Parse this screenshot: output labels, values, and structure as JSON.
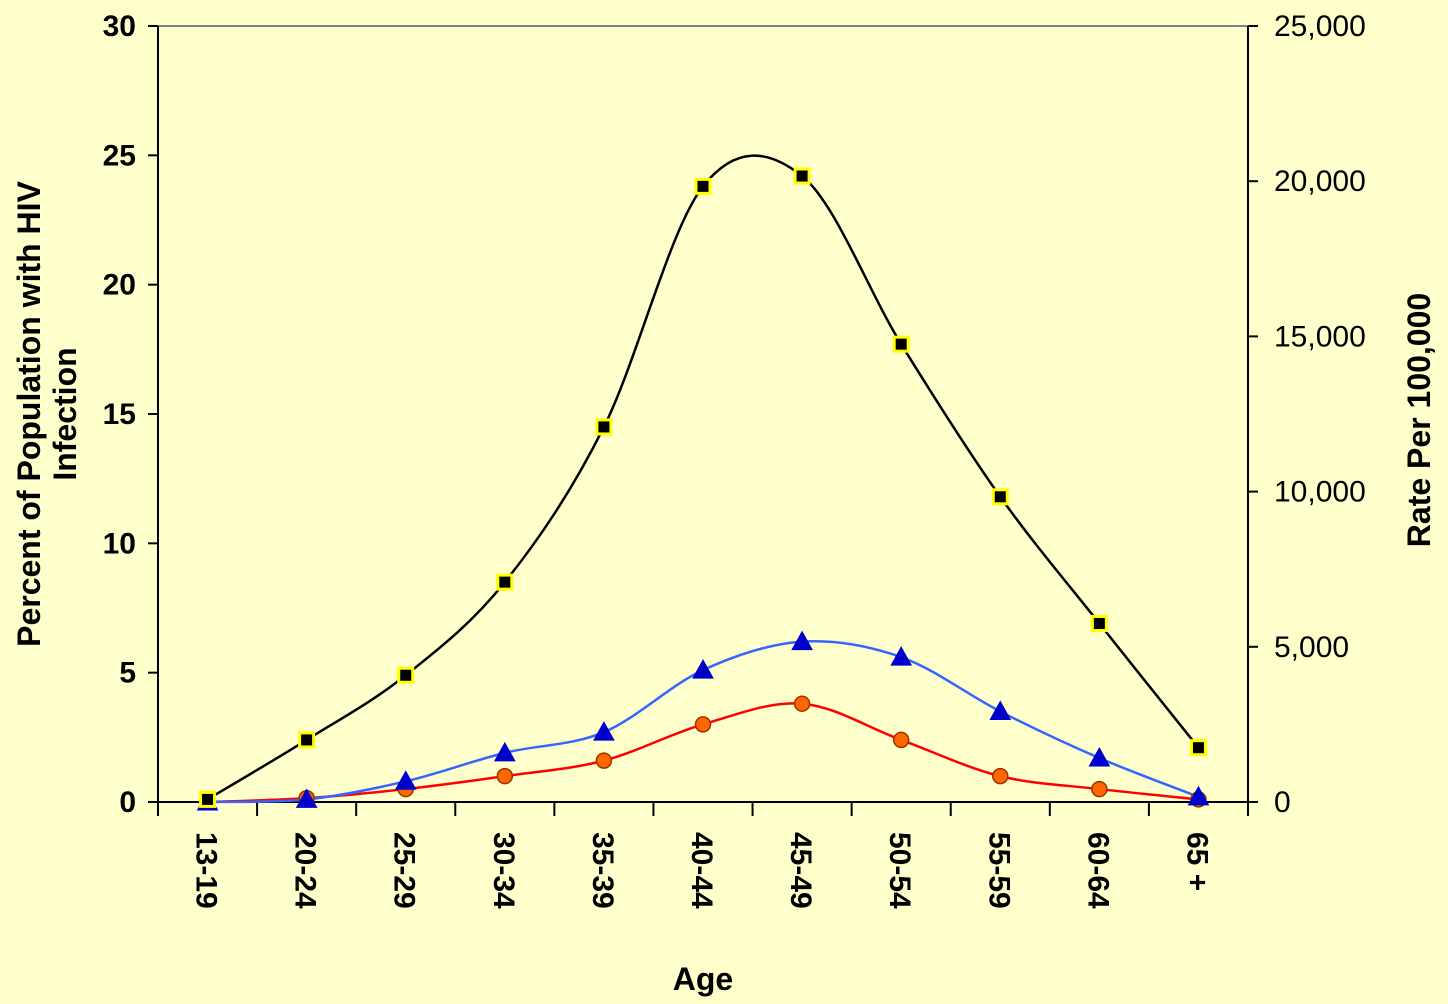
{
  "chart_data": {
    "type": "line",
    "categories": [
      "13-19",
      "20-24",
      "25-29",
      "30-34",
      "35-39",
      "40-44",
      "45-49",
      "50-54",
      "55-59",
      "60-64",
      "65 +"
    ],
    "xlabel": "Age",
    "ylabel_left": "Percent of Population with HIV Infection",
    "ylabel_right": "Rate Per 100,000",
    "ylim_left": [
      0,
      30
    ],
    "ylim_right": [
      0,
      25000
    ],
    "left_ticks": [
      "0",
      "5",
      "10",
      "15",
      "20",
      "25",
      "30"
    ],
    "right_ticks": [
      "0",
      "5,000",
      "10,000",
      "15,000",
      "20,000",
      "25,000"
    ],
    "grid": false,
    "series": [
      {
        "marker": "square",
        "axis": "left",
        "line_color": "#000000",
        "marker_fill": "#000000",
        "marker_edge": "#FFFF00",
        "values": [
          0.1,
          2.4,
          4.9,
          8.5,
          14.5,
          23.8,
          24.2,
          17.7,
          11.8,
          6.9,
          2.1
        ]
      },
      {
        "marker": "triangle",
        "axis": "left",
        "line_color": "#3366FF",
        "marker_fill": "#0000CC",
        "marker_edge": "#0000CC",
        "values": [
          0.0,
          0.1,
          0.8,
          1.9,
          2.7,
          5.1,
          6.2,
          5.6,
          3.5,
          1.7,
          0.2
        ]
      },
      {
        "marker": "circle",
        "axis": "left",
        "line_color": "#FF0000",
        "marker_fill": "#FF6600",
        "marker_edge": "#993300",
        "values": [
          0.0,
          0.15,
          0.5,
          1.0,
          1.6,
          3.0,
          3.8,
          2.4,
          1.0,
          0.5,
          0.1
        ]
      }
    ]
  }
}
